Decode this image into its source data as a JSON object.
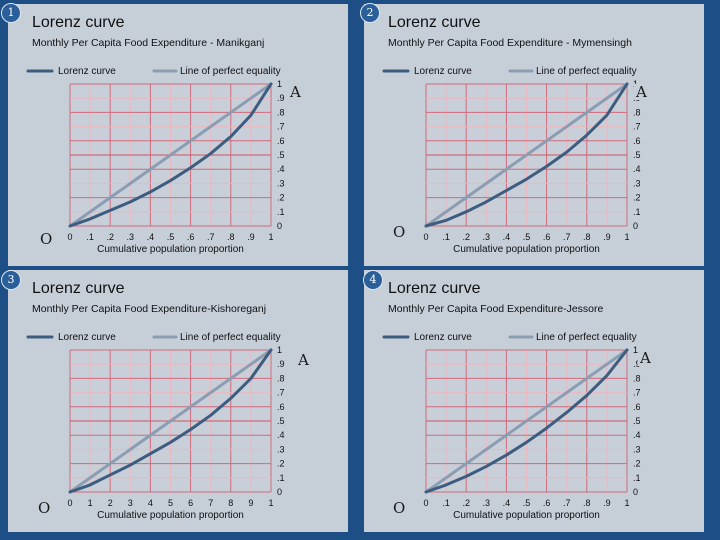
{
  "chart_data": [
    {
      "type": "line",
      "number": "1",
      "title": "Lorenz curve",
      "subtitle": "Monthly Per Capita Food Expenditure - Manikganj",
      "xlabel": "Cumulative population proportion",
      "xticks": [
        "0",
        ".1",
        ".2",
        ".3",
        ".4",
        ".5",
        ".6",
        ".7",
        ".8",
        ".9",
        "1"
      ],
      "yticks": [
        "0",
        ".1",
        ".2",
        ".3",
        ".4",
        ".5",
        ".6",
        ".7",
        ".8",
        ".9",
        "1"
      ],
      "xlim": [
        0,
        1
      ],
      "ylim": [
        0,
        1
      ],
      "legend": "top",
      "marker_top": "A",
      "marker_bottom": "O",
      "series": [
        {
          "name": "Lorenz curve",
          "color": "#3d5d80",
          "x": [
            0,
            0.1,
            0.2,
            0.3,
            0.4,
            0.5,
            0.6,
            0.7,
            0.8,
            0.9,
            1
          ],
          "y": [
            0,
            0.05,
            0.11,
            0.17,
            0.24,
            0.32,
            0.41,
            0.51,
            0.63,
            0.78,
            1
          ]
        },
        {
          "name": "Line of perfect equality",
          "color": "#8b9db3",
          "x": [
            0,
            1
          ],
          "y": [
            0,
            1
          ]
        }
      ]
    },
    {
      "type": "line",
      "number": "2",
      "title": "Lorenz curve",
      "subtitle": "Monthly Per Capita Food Expenditure - Mymensingh",
      "xlabel": "Cumulative population proportion",
      "xticks": [
        "0",
        ".1",
        ".2",
        ".3",
        ".4",
        ".5",
        ".6",
        ".7",
        ".8",
        ".9",
        "1"
      ],
      "yticks": [
        "0",
        ".1",
        ".2",
        ".3",
        ".4",
        ".5",
        ".6",
        ".7",
        ".8",
        ".9",
        "1"
      ],
      "xlim": [
        0,
        1
      ],
      "ylim": [
        0,
        1
      ],
      "legend": "top",
      "marker_top": "A",
      "marker_bottom": "O",
      "series": [
        {
          "name": "Lorenz curve",
          "color": "#3d5d80",
          "x": [
            0,
            0.1,
            0.2,
            0.3,
            0.4,
            0.5,
            0.6,
            0.7,
            0.8,
            0.9,
            1
          ],
          "y": [
            0,
            0.04,
            0.1,
            0.17,
            0.25,
            0.33,
            0.42,
            0.52,
            0.64,
            0.78,
            1
          ]
        },
        {
          "name": "Line of perfect equality",
          "color": "#8b9db3",
          "x": [
            0,
            1
          ],
          "y": [
            0,
            1
          ]
        }
      ]
    },
    {
      "type": "line",
      "number": "3",
      "title": "Lorenz curve",
      "subtitle": "Monthly Per Capita Food Expenditure-Kishoreganj",
      "xlabel": "Cumulative population proportion",
      "xticks": [
        "0",
        "1",
        "2",
        "3",
        "4",
        "5",
        "6",
        "7",
        "8",
        "9",
        "1"
      ],
      "yticks": [
        "0",
        ".1",
        ".2",
        ".3",
        ".4",
        ".5",
        ".6",
        ".7",
        ".8",
        ".9",
        "1"
      ],
      "xlim": [
        0,
        1
      ],
      "ylim": [
        0,
        1
      ],
      "legend": "top",
      "marker_top": "A",
      "marker_bottom": "O",
      "series": [
        {
          "name": "Lorenz curve",
          "color": "#3d5d80",
          "x": [
            0,
            0.1,
            0.2,
            0.3,
            0.4,
            0.5,
            0.6,
            0.7,
            0.8,
            0.9,
            1
          ],
          "y": [
            0,
            0.05,
            0.12,
            0.19,
            0.27,
            0.35,
            0.44,
            0.54,
            0.66,
            0.8,
            1
          ]
        },
        {
          "name": "Line of perfect equality",
          "color": "#8b9db3",
          "x": [
            0,
            1
          ],
          "y": [
            0,
            1
          ]
        }
      ]
    },
    {
      "type": "line",
      "number": "4",
      "title": "Lorenz curve",
      "subtitle": "Monthly Per Capita Food Expenditure-Jessore",
      "xlabel": "Cumulative population proportion",
      "xticks": [
        "0",
        ".1",
        ".2",
        ".3",
        ".4",
        ".5",
        ".6",
        ".7",
        ".8",
        ".9",
        "1"
      ],
      "yticks": [
        "0",
        ".1",
        ".2",
        ".3",
        ".4",
        ".5",
        ".6",
        ".7",
        ".8",
        ".9",
        "1"
      ],
      "xlim": [
        0,
        1
      ],
      "ylim": [
        0,
        1
      ],
      "legend": "top",
      "marker_top": "A",
      "marker_bottom": "O",
      "series": [
        {
          "name": "Lorenz curve",
          "color": "#3d5d80",
          "x": [
            0,
            0.1,
            0.2,
            0.3,
            0.4,
            0.5,
            0.6,
            0.7,
            0.8,
            0.9,
            1
          ],
          "y": [
            0,
            0.05,
            0.11,
            0.18,
            0.26,
            0.35,
            0.45,
            0.56,
            0.68,
            0.82,
            1
          ]
        },
        {
          "name": "Line of perfect equality",
          "color": "#8b9db3",
          "x": [
            0,
            1
          ],
          "y": [
            0,
            1
          ]
        }
      ]
    }
  ],
  "style": {
    "background": "#1d4f86",
    "panel": "#c6ced8",
    "grid_major": "#d06a7a",
    "grid_minor": "#e8b9c1"
  }
}
